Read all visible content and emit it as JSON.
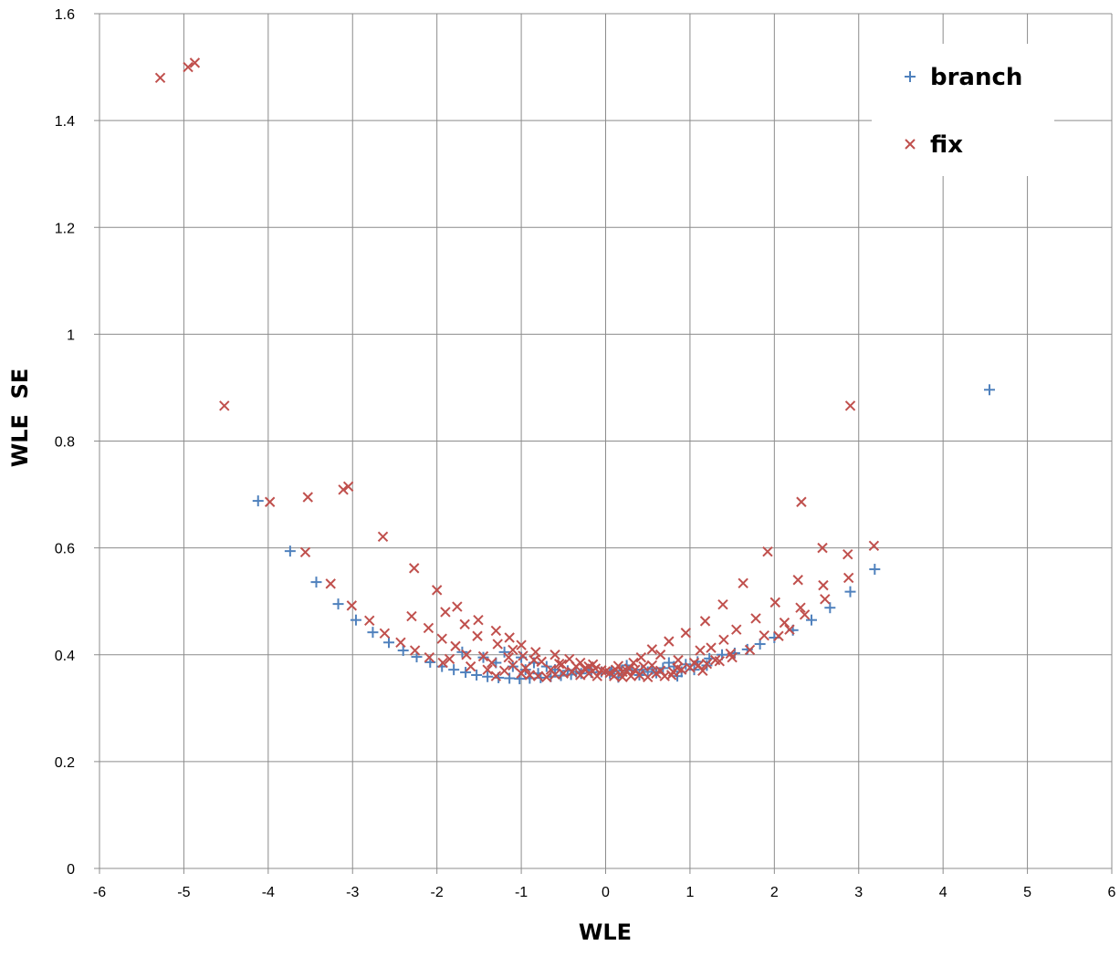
{
  "chart_data": {
    "type": "scatter",
    "title": "",
    "xlabel": "WLE",
    "ylabel": "WLE  SE",
    "xlim": [
      -6,
      6
    ],
    "ylim": [
      0,
      1.6
    ],
    "xticks": [
      "-6",
      "-5",
      "-4",
      "-3",
      "-2",
      "-1",
      "0",
      "1",
      "2",
      "3",
      "4",
      "5",
      "6"
    ],
    "yticks": [
      "0",
      "0.2",
      "0.4",
      "0.6",
      "0.8",
      "1",
      "1.2",
      "1.4",
      "1.6"
    ],
    "grid": true,
    "legend_position": "top-right",
    "series": [
      {
        "name": "branch",
        "marker": "plus",
        "color": "#4f81bd",
        "points": [
          [
            -4.12,
            0.688
          ],
          [
            -3.74,
            0.594
          ],
          [
            -3.43,
            0.536
          ],
          [
            -3.17,
            0.495
          ],
          [
            -2.96,
            0.465
          ],
          [
            -2.76,
            0.442
          ],
          [
            -2.57,
            0.423
          ],
          [
            -2.4,
            0.408
          ],
          [
            -2.24,
            0.396
          ],
          [
            -2.08,
            0.386
          ],
          [
            -1.94,
            0.378
          ],
          [
            -1.8,
            0.372
          ],
          [
            -1.66,
            0.367
          ],
          [
            -1.53,
            0.362
          ],
          [
            -1.4,
            0.359
          ],
          [
            -1.27,
            0.357
          ],
          [
            -1.14,
            0.356
          ],
          [
            -1.02,
            0.355
          ],
          [
            -0.9,
            0.356
          ],
          [
            -0.77,
            0.357
          ],
          [
            -0.65,
            0.359
          ],
          [
            -0.53,
            0.361
          ],
          [
            -0.41,
            0.363
          ],
          [
            -0.29,
            0.365
          ],
          [
            -0.17,
            0.367
          ],
          [
            -0.05,
            0.368
          ],
          [
            0.07,
            0.369
          ],
          [
            0.19,
            0.37
          ],
          [
            0.31,
            0.371
          ],
          [
            0.43,
            0.372
          ],
          [
            0.55,
            0.373
          ],
          [
            0.68,
            0.375
          ],
          [
            0.81,
            0.378
          ],
          [
            0.95,
            0.382
          ],
          [
            1.09,
            0.387
          ],
          [
            1.23,
            0.393
          ],
          [
            1.38,
            0.4
          ],
          [
            1.53,
            0.403
          ],
          [
            1.68,
            0.41
          ],
          [
            1.83,
            0.42
          ],
          [
            2.0,
            0.432
          ],
          [
            2.22,
            0.446
          ],
          [
            2.44,
            0.465
          ],
          [
            2.66,
            0.488
          ],
          [
            2.9,
            0.518
          ],
          [
            3.19,
            0.56
          ],
          [
            4.55,
            0.896
          ],
          [
            -1.7,
            0.405
          ],
          [
            -1.45,
            0.395
          ],
          [
            -1.2,
            0.405
          ],
          [
            -1.0,
            0.395
          ],
          [
            -0.85,
            0.385
          ],
          [
            -0.6,
            0.372
          ],
          [
            -0.35,
            0.368
          ],
          [
            -1.1,
            0.378
          ],
          [
            -0.95,
            0.372
          ],
          [
            -0.7,
            0.378
          ],
          [
            -0.45,
            0.37
          ],
          [
            0.05,
            0.365
          ],
          [
            0.25,
            0.38
          ],
          [
            0.4,
            0.362
          ],
          [
            0.6,
            0.366
          ],
          [
            0.75,
            0.385
          ],
          [
            0.9,
            0.368
          ],
          [
            1.05,
            0.372
          ],
          [
            1.2,
            0.38
          ],
          [
            -1.3,
            0.385
          ],
          [
            -0.8,
            0.365
          ],
          [
            -0.2,
            0.372
          ],
          [
            0.15,
            0.358
          ],
          [
            0.5,
            0.368
          ],
          [
            0.85,
            0.36
          ]
        ]
      },
      {
        "name": "fix",
        "marker": "x",
        "color": "#c0504d",
        "points": [
          [
            -5.28,
            1.48
          ],
          [
            -4.95,
            1.5
          ],
          [
            -4.87,
            1.508
          ],
          [
            -4.52,
            0.866
          ],
          [
            -3.98,
            0.686
          ],
          [
            -3.56,
            0.592
          ],
          [
            -3.53,
            0.695
          ],
          [
            -3.11,
            0.709
          ],
          [
            -3.05,
            0.715
          ],
          [
            -3.26,
            0.533
          ],
          [
            -3.01,
            0.492
          ],
          [
            -2.8,
            0.464
          ],
          [
            -2.62,
            0.44
          ],
          [
            -2.64,
            0.621
          ],
          [
            -2.43,
            0.423
          ],
          [
            -2.26,
            0.408
          ],
          [
            -2.3,
            0.472
          ],
          [
            -2.27,
            0.562
          ],
          [
            -2.09,
            0.395
          ],
          [
            -1.93,
            0.385
          ],
          [
            -2.0,
            0.521
          ],
          [
            -1.94,
            0.43
          ],
          [
            -1.9,
            0.48
          ],
          [
            -2.1,
            0.45
          ],
          [
            -1.76,
            0.49
          ],
          [
            -1.78,
            0.416
          ],
          [
            -1.67,
            0.457
          ],
          [
            -1.51,
            0.465
          ],
          [
            -1.52,
            0.435
          ],
          [
            -1.45,
            0.397
          ],
          [
            -1.3,
            0.445
          ],
          [
            -1.28,
            0.42
          ],
          [
            -1.14,
            0.432
          ],
          [
            -1.1,
            0.409
          ],
          [
            -1.0,
            0.418
          ],
          [
            -0.98,
            0.398
          ],
          [
            -0.83,
            0.405
          ],
          [
            -0.76,
            0.387
          ],
          [
            -0.6,
            0.4
          ],
          [
            -0.52,
            0.382
          ],
          [
            -0.43,
            0.392
          ],
          [
            -0.3,
            0.385
          ],
          [
            -0.2,
            0.378
          ],
          [
            -0.12,
            0.374
          ],
          [
            -0.05,
            0.371
          ],
          [
            0.0,
            0.369
          ],
          [
            0.05,
            0.366
          ],
          [
            0.12,
            0.372
          ],
          [
            0.2,
            0.368
          ],
          [
            0.28,
            0.374
          ],
          [
            0.33,
            0.385
          ],
          [
            0.42,
            0.395
          ],
          [
            0.55,
            0.41
          ],
          [
            0.65,
            0.4
          ],
          [
            0.75,
            0.425
          ],
          [
            0.86,
            0.39
          ],
          [
            0.95,
            0.441
          ],
          [
            1.05,
            0.385
          ],
          [
            1.12,
            0.408
          ],
          [
            1.18,
            0.463
          ],
          [
            1.25,
            0.413
          ],
          [
            1.3,
            0.39
          ],
          [
            1.39,
            0.494
          ],
          [
            1.4,
            0.428
          ],
          [
            1.48,
            0.402
          ],
          [
            1.55,
            0.447
          ],
          [
            1.63,
            0.534
          ],
          [
            1.71,
            0.409
          ],
          [
            1.78,
            0.468
          ],
          [
            1.88,
            0.436
          ],
          [
            1.92,
            0.593
          ],
          [
            2.01,
            0.498
          ],
          [
            2.05,
            0.435
          ],
          [
            2.12,
            0.46
          ],
          [
            2.18,
            0.447
          ],
          [
            2.28,
            0.54
          ],
          [
            2.31,
            0.488
          ],
          [
            2.32,
            0.686
          ],
          [
            2.36,
            0.475
          ],
          [
            2.57,
            0.6
          ],
          [
            2.58,
            0.53
          ],
          [
            2.6,
            0.504
          ],
          [
            2.87,
            0.588
          ],
          [
            2.88,
            0.544
          ],
          [
            2.9,
            0.866
          ],
          [
            3.18,
            0.604
          ],
          [
            -1.2,
            0.37
          ],
          [
            -1.0,
            0.365
          ],
          [
            -0.9,
            0.362
          ],
          [
            -0.8,
            0.36
          ],
          [
            -0.7,
            0.358
          ],
          [
            -0.6,
            0.363
          ],
          [
            -0.5,
            0.365
          ],
          [
            -0.4,
            0.368
          ],
          [
            -0.3,
            0.362
          ],
          [
            -0.2,
            0.365
          ],
          [
            -0.1,
            0.36
          ],
          [
            0.1,
            0.36
          ],
          [
            0.2,
            0.358
          ],
          [
            0.3,
            0.36
          ],
          [
            0.4,
            0.362
          ],
          [
            0.5,
            0.358
          ],
          [
            0.6,
            0.365
          ],
          [
            0.7,
            0.36
          ],
          [
            0.8,
            0.368
          ],
          [
            0.9,
            0.372
          ],
          [
            1.0,
            0.376
          ],
          [
            1.1,
            0.38
          ],
          [
            1.2,
            0.383
          ],
          [
            1.35,
            0.388
          ],
          [
            1.5,
            0.395
          ],
          [
            -1.6,
            0.378
          ],
          [
            -1.4,
            0.372
          ],
          [
            -1.3,
            0.36
          ],
          [
            -1.1,
            0.38
          ],
          [
            -0.95,
            0.375
          ],
          [
            -0.65,
            0.372
          ],
          [
            -0.35,
            0.378
          ],
          [
            -0.15,
            0.382
          ],
          [
            0.15,
            0.379
          ],
          [
            0.35,
            0.372
          ],
          [
            0.45,
            0.378
          ],
          [
            0.65,
            0.37
          ],
          [
            0.85,
            0.375
          ],
          [
            -1.85,
            0.392
          ],
          [
            -1.65,
            0.4
          ],
          [
            -1.35,
            0.385
          ],
          [
            -1.15,
            0.395
          ],
          [
            -0.85,
            0.39
          ],
          [
            -0.55,
            0.383
          ],
          [
            -0.25,
            0.374
          ],
          [
            0.25,
            0.37
          ],
          [
            0.55,
            0.38
          ],
          [
            0.78,
            0.362
          ],
          [
            1.15,
            0.37
          ]
        ]
      }
    ]
  }
}
